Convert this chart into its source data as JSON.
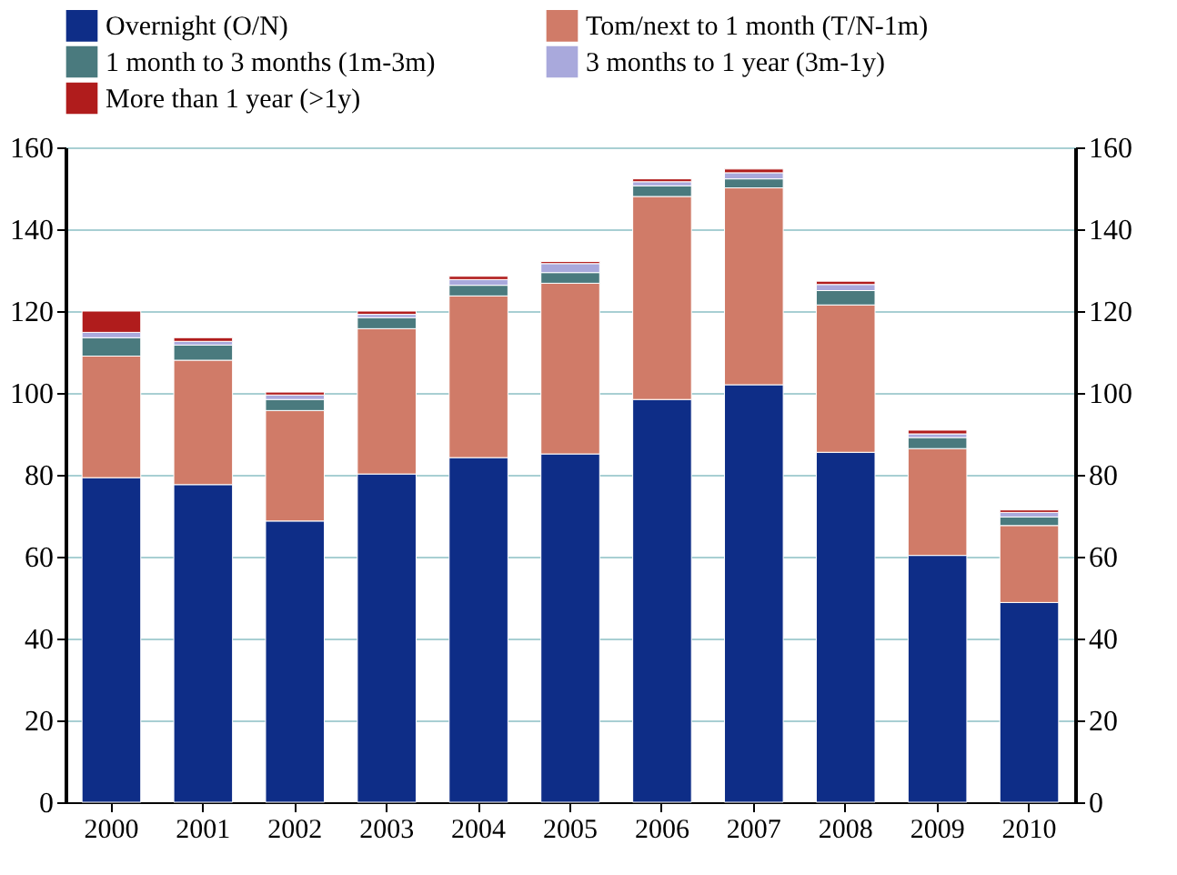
{
  "chart_data": {
    "type": "bar",
    "stacked": true,
    "categories": [
      "2000",
      "2001",
      "2002",
      "2003",
      "2004",
      "2005",
      "2006",
      "2007",
      "2008",
      "2009",
      "2010"
    ],
    "series": [
      {
        "name": "Overnight (O/N)",
        "color": "#0e2d87",
        "values": [
          79.3,
          77.6,
          68.7,
          80.2,
          84.2,
          85.1,
          98.4,
          102.0,
          85.5,
          60.3,
          48.8
        ]
      },
      {
        "name": "Tom/next to 1 month (T/N-1m)",
        "color": "#d07b68",
        "values": [
          29.7,
          30.4,
          27.0,
          35.5,
          39.5,
          41.7,
          49.6,
          48.1,
          36.0,
          26.1,
          18.8
        ]
      },
      {
        "name": "1 month to 3 months (1m-3m)",
        "color": "#4a7a7e",
        "values": [
          4.5,
          3.7,
          2.7,
          2.7,
          2.6,
          2.6,
          2.6,
          2.2,
          3.5,
          2.7,
          2.1
        ]
      },
      {
        "name": "3 months to 1 year (3m-1y)",
        "color": "#a9a9dc",
        "values": [
          1.3,
          0.9,
          1.1,
          0.8,
          1.4,
          2.2,
          1.0,
          1.5,
          1.5,
          0.9,
          1.1
        ]
      },
      {
        "name": "More than 1 year (>1y)",
        "color": "#b01c1c",
        "values": [
          5.2,
          0.9,
          0.7,
          0.8,
          0.8,
          0.5,
          0.7,
          0.9,
          0.8,
          0.9,
          0.6
        ]
      }
    ],
    "ylim": [
      0,
      160
    ],
    "yticks": [
      0,
      20,
      40,
      60,
      80,
      100,
      120,
      140,
      160
    ],
    "y2lim": [
      0,
      160
    ],
    "y2ticks": [
      0,
      20,
      40,
      60,
      80,
      100,
      120,
      140,
      160
    ],
    "grid": "y",
    "legend": "top"
  }
}
